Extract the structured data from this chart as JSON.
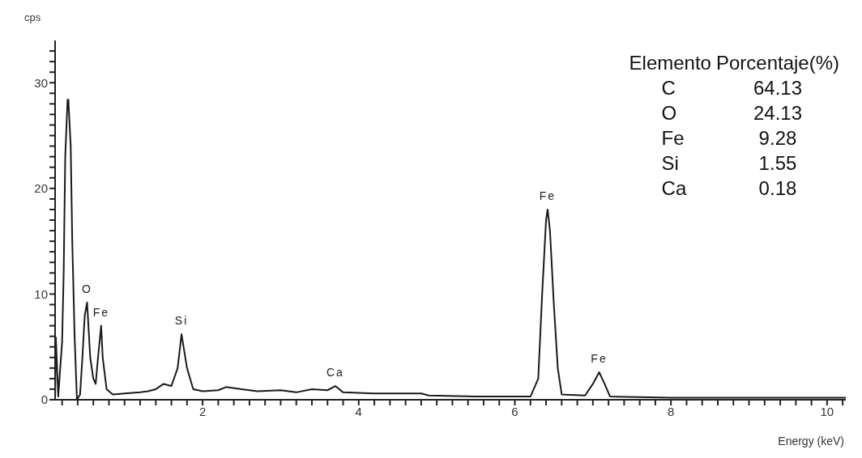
{
  "chart_data": {
    "type": "line",
    "ylabel": "cps",
    "xlabel": "Energy (keV)",
    "x": [
      0.11,
      0.12,
      0.15,
      0.2,
      0.22,
      0.24,
      0.27,
      0.28,
      0.31,
      0.33,
      0.36,
      0.39,
      0.43,
      0.46,
      0.49,
      0.52,
      0.56,
      0.6,
      0.63,
      0.66,
      0.7,
      0.72,
      0.77,
      0.85,
      1.0,
      1.2,
      1.3,
      1.4,
      1.5,
      1.6,
      1.68,
      1.73,
      1.8,
      1.88,
      2.0,
      2.2,
      2.3,
      2.5,
      2.7,
      3.0,
      3.2,
      3.4,
      3.6,
      3.7,
      3.8,
      4.2,
      4.8,
      4.9,
      5.5,
      6.2,
      6.3,
      6.35,
      6.4,
      6.42,
      6.45,
      6.5,
      6.55,
      6.6,
      6.9,
      7.0,
      7.08,
      7.15,
      7.22,
      8.0,
      9.0,
      10.24
    ],
    "series": [
      {
        "color": "#1a1a1a",
        "values": [
          0,
          5.9,
          0.3,
          5.5,
          12,
          23,
          28.4,
          28.4,
          24,
          15,
          6,
          0,
          0.5,
          4,
          8,
          9.2,
          4,
          2,
          1.5,
          4,
          7,
          4,
          1,
          0.5,
          0.6,
          0.7,
          0.8,
          1,
          1.5,
          1.3,
          3,
          6.2,
          3,
          1,
          0.8,
          0.9,
          1.2,
          1,
          0.8,
          0.9,
          0.7,
          1,
          0.9,
          1.3,
          0.7,
          0.6,
          0.6,
          0.4,
          0.3,
          0.3,
          2,
          10,
          17,
          18,
          16,
          9,
          3,
          0.5,
          0.4,
          1.5,
          2.6,
          1.5,
          0.3,
          0.2,
          0.2,
          0.2
        ]
      }
    ],
    "xlim": [
      0.11,
      10.24
    ],
    "ylim": [
      0,
      34
    ],
    "xticks": [
      {
        "value": 0.2,
        "label": null
      },
      {
        "value": 0.4,
        "label": null
      },
      {
        "value": 0.6,
        "label": null
      },
      {
        "value": 0.8,
        "label": null
      },
      {
        "value": 1,
        "label": null
      },
      {
        "value": 1.2,
        "label": null
      },
      {
        "value": 1.4,
        "label": null
      },
      {
        "value": 1.6,
        "label": null
      },
      {
        "value": 1.8,
        "label": null
      },
      2,
      {
        "value": 2.2,
        "label": null
      },
      {
        "value": 2.4,
        "label": null
      },
      {
        "value": 2.6,
        "label": null
      },
      {
        "value": 2.8,
        "label": null
      },
      {
        "value": 3,
        "label": null
      },
      {
        "value": 3.2,
        "label": null
      },
      {
        "value": 3.4,
        "label": null
      },
      {
        "value": 3.6,
        "label": null
      },
      {
        "value": 3.8,
        "label": null
      },
      4,
      {
        "value": 4.2,
        "label": null
      },
      {
        "value": 4.4,
        "label": null
      },
      {
        "value": 4.6,
        "label": null
      },
      {
        "value": 4.8,
        "label": null
      },
      {
        "value": 5,
        "label": null
      },
      {
        "value": 5.2,
        "label": null
      },
      {
        "value": 5.4,
        "label": null
      },
      {
        "value": 5.6,
        "label": null
      },
      {
        "value": 5.8,
        "label": null
      },
      6,
      {
        "value": 6.2,
        "label": null
      },
      {
        "value": 6.4,
        "label": null
      },
      {
        "value": 6.6,
        "label": null
      },
      {
        "value": 6.8,
        "label": null
      },
      {
        "value": 7,
        "label": null
      },
      {
        "value": 7.2,
        "label": null
      },
      {
        "value": 7.4,
        "label": null
      },
      {
        "value": 7.6,
        "label": null
      },
      {
        "value": 7.8,
        "label": null
      },
      8,
      {
        "value": 8.2,
        "label": null
      },
      {
        "value": 8.4,
        "label": null
      },
      {
        "value": 8.6,
        "label": null
      },
      {
        "value": 8.8,
        "label": null
      },
      {
        "value": 9,
        "label": null
      },
      {
        "value": 9.2,
        "label": null
      },
      {
        "value": 9.4,
        "label": null
      },
      {
        "value": 9.6,
        "label": null
      },
      {
        "value": 9.8,
        "label": null
      },
      10,
      {
        "value": 10.2,
        "label": null
      }
    ],
    "yticks": [
      0,
      {
        "value": 1,
        "label": null
      },
      {
        "value": 2,
        "label": null
      },
      {
        "value": 3,
        "label": null
      },
      {
        "value": 4,
        "label": null
      },
      {
        "value": 5,
        "label": null
      },
      {
        "value": 6,
        "label": null
      },
      {
        "value": 7,
        "label": null
      },
      {
        "value": 8,
        "label": null
      },
      {
        "value": 9,
        "label": null
      },
      10,
      {
        "value": 11,
        "label": null
      },
      {
        "value": 12,
        "label": null
      },
      {
        "value": 13,
        "label": null
      },
      {
        "value": 14,
        "label": null
      },
      {
        "value": 15,
        "label": null
      },
      {
        "value": 16,
        "label": null
      },
      {
        "value": 17,
        "label": null
      },
      {
        "value": 18,
        "label": null
      },
      {
        "value": 19,
        "label": null
      },
      20,
      {
        "value": 21,
        "label": null
      },
      {
        "value": 22,
        "label": null
      },
      {
        "value": 23,
        "label": null
      },
      {
        "value": 24,
        "label": null
      },
      {
        "value": 25,
        "label": null
      },
      {
        "value": 26,
        "label": null
      },
      {
        "value": 27,
        "label": null
      },
      {
        "value": 28,
        "label": null
      },
      {
        "value": 29,
        "label": null
      },
      30,
      {
        "value": 31,
        "label": null
      },
      {
        "value": 32,
        "label": null
      },
      {
        "value": 33,
        "label": null
      }
    ],
    "marker": "none",
    "line_style": "solid",
    "annotations": [
      {
        "text": "O",
        "x": 0.52,
        "y": 9.2
      },
      {
        "text": "Fe",
        "x": 0.7,
        "y": 7
      },
      {
        "text": "Si",
        "x": 1.73,
        "y": 6.2
      },
      {
        "text": "Ca",
        "x": 3.7,
        "y": 1.3
      },
      {
        "text": "Fe",
        "x": 6.42,
        "y": 18
      },
      {
        "text": "Fe",
        "x": 7.08,
        "y": 2.6
      },
      "Elemento",
      "Porcentaje(%)",
      "C",
      "64.13",
      "O",
      "24.13",
      "Fe",
      "9.28",
      "Si",
      "1.55",
      "Ca",
      "0.18"
    ]
  }
}
